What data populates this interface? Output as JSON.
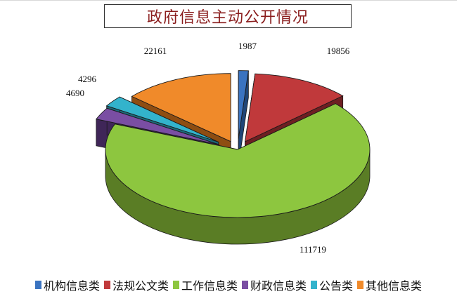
{
  "colors": {
    "title": "#8a1d1d"
  },
  "chart_data": {
    "type": "pie",
    "title": "政府信息主动公开情况",
    "three_d": true,
    "exploded": true,
    "legend_position": "bottom",
    "slices": [
      {
        "label": "机构信息类",
        "value": 1987,
        "color": "#3a73c0",
        "side": "#1f4577"
      },
      {
        "label": "法规公文类",
        "value": 19856,
        "color": "#c0393b",
        "side": "#6e1f22"
      },
      {
        "label": "工作信息类",
        "value": 111719,
        "color": "#8dc63f",
        "side": "#5a7d25"
      },
      {
        "label": "财政信息类",
        "value": 4690,
        "color": "#7a4ea3",
        "side": "#3f2658"
      },
      {
        "label": "公告类",
        "value": 4296,
        "color": "#33b3cc",
        "side": "#1c6a7a"
      },
      {
        "label": "其他信息类",
        "value": 22161,
        "color": "#f08a2a",
        "side": "#8e4d12"
      }
    ]
  }
}
